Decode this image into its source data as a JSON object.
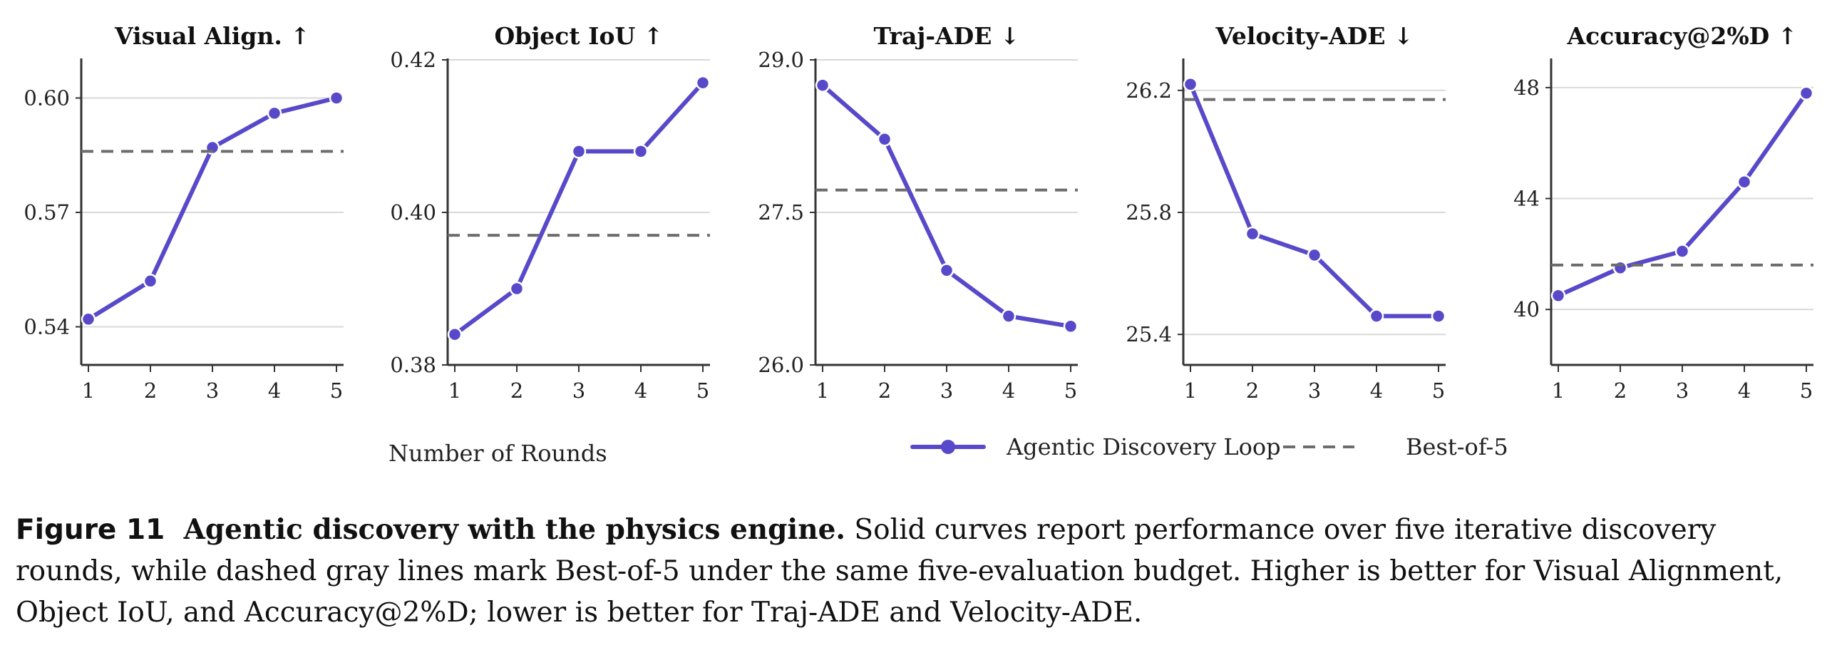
{
  "colors": {
    "series": "#5749c9",
    "baseline": "#6d6d6d",
    "grid": "#d9d9d9",
    "axis": "#333333"
  },
  "x_axis_label": "Number of Rounds",
  "legend": {
    "series_label": "Agentic Discovery Loop",
    "baseline_label": "Best-of-5"
  },
  "chart_data": [
    {
      "type": "line",
      "title": "Visual Align. ↑",
      "x": [
        1,
        2,
        3,
        4,
        5
      ],
      "series": [
        {
          "name": "Agentic Discovery Loop",
          "values": [
            0.542,
            0.552,
            0.587,
            0.596,
            0.6
          ]
        },
        {
          "name": "Best-of-5",
          "style": "dashed",
          "values": [
            0.586,
            0.586,
            0.586,
            0.586,
            0.586
          ]
        }
      ],
      "ylim": [
        0.53,
        0.61
      ],
      "yticks": [
        0.54,
        0.57,
        0.6
      ],
      "ytick_labels": [
        "0.54",
        "0.57",
        "0.60"
      ],
      "grid": true
    },
    {
      "type": "line",
      "title": "Object IoU ↑",
      "x": [
        1,
        2,
        3,
        4,
        5
      ],
      "series": [
        {
          "name": "Agentic Discovery Loop",
          "values": [
            0.384,
            0.39,
            0.408,
            0.408,
            0.417
          ]
        },
        {
          "name": "Best-of-5",
          "style": "dashed",
          "values": [
            0.397,
            0.397,
            0.397,
            0.397,
            0.397
          ]
        }
      ],
      "ylim": [
        0.38,
        0.42
      ],
      "yticks": [
        0.38,
        0.4,
        0.42
      ],
      "ytick_labels": [
        "0.38",
        "0.40",
        "0.42"
      ],
      "grid": true
    },
    {
      "type": "line",
      "title": "Traj-ADE ↓",
      "x": [
        1,
        2,
        3,
        4,
        5
      ],
      "series": [
        {
          "name": "Agentic Discovery Loop",
          "values": [
            28.75,
            28.22,
            26.93,
            26.48,
            26.38
          ]
        },
        {
          "name": "Best-of-5",
          "style": "dashed",
          "values": [
            27.72,
            27.72,
            27.72,
            27.72,
            27.72
          ]
        }
      ],
      "ylim": [
        26.0,
        29.0
      ],
      "yticks": [
        26.0,
        27.5,
        29.0
      ],
      "ytick_labels": [
        "26.0",
        "27.5",
        "29.0"
      ],
      "grid": true
    },
    {
      "type": "line",
      "title": "Velocity-ADE ↓",
      "x": [
        1,
        2,
        3,
        4,
        5
      ],
      "series": [
        {
          "name": "Agentic Discovery Loop",
          "values": [
            26.22,
            25.73,
            25.66,
            25.46,
            25.46
          ]
        },
        {
          "name": "Best-of-5",
          "style": "dashed",
          "values": [
            26.17,
            26.17,
            26.17,
            26.17,
            26.17
          ]
        }
      ],
      "ylim": [
        25.3,
        26.3
      ],
      "yticks": [
        25.4,
        25.8,
        26.2
      ],
      "ytick_labels": [
        "25.4",
        "25.8",
        "26.2"
      ],
      "grid": true
    },
    {
      "type": "line",
      "title": "Accuracy@2%D ↑",
      "x": [
        1,
        2,
        3,
        4,
        5
      ],
      "series": [
        {
          "name": "Agentic Discovery Loop",
          "values": [
            40.5,
            41.5,
            42.1,
            44.6,
            47.8
          ]
        },
        {
          "name": "Best-of-5",
          "style": "dashed",
          "values": [
            41.6,
            41.6,
            41.6,
            41.6,
            41.6
          ]
        }
      ],
      "ylim": [
        38.0,
        49.0
      ],
      "yticks": [
        40,
        44,
        48
      ],
      "ytick_labels": [
        "40",
        "44",
        "48"
      ],
      "grid": true
    }
  ],
  "caption": {
    "figure_number": "Figure 11",
    "lead": "Agentic discovery with the physics engine.",
    "text": "Solid curves report performance over five iterative discovery rounds, while dashed gray lines mark Best-of-5 under the same five-evaluation budget. Higher is better for Visual Alignment, Object IoU, and Accuracy@2%D; lower is better for Traj-ADE and Velocity-ADE."
  }
}
